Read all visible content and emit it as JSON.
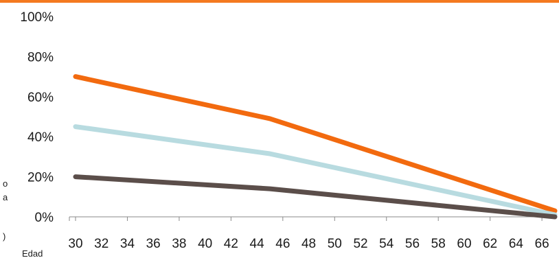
{
  "chart_data": {
    "type": "line",
    "title": "",
    "xlabel": "Edad",
    "ylabel": "",
    "xlim": [
      30,
      67
    ],
    "ylim": [
      0,
      100
    ],
    "x_ticks": [
      30,
      32,
      34,
      36,
      38,
      40,
      42,
      44,
      46,
      48,
      50,
      52,
      54,
      56,
      58,
      60,
      62,
      64,
      66
    ],
    "y_ticks": [
      "0%",
      "20%",
      "40%",
      "60%",
      "80%",
      "100%"
    ],
    "y_tick_values": [
      0,
      20,
      40,
      60,
      80,
      100
    ],
    "grid": false,
    "legend": "none",
    "series": [
      {
        "color": "#f26a0f",
        "x": [
          30,
          45,
          67
        ],
        "values": [
          70,
          49,
          3
        ]
      },
      {
        "color": "#b8dbe0",
        "x": [
          30,
          45,
          67
        ],
        "values": [
          45,
          31.5,
          1
        ]
      },
      {
        "color": "#5b4e4a",
        "x": [
          30,
          45,
          67
        ],
        "values": [
          20,
          14,
          0
        ]
      }
    ],
    "axis_color": "#8a8a8a"
  },
  "left_fragments": [
    "o",
    "a",
    ")"
  ]
}
